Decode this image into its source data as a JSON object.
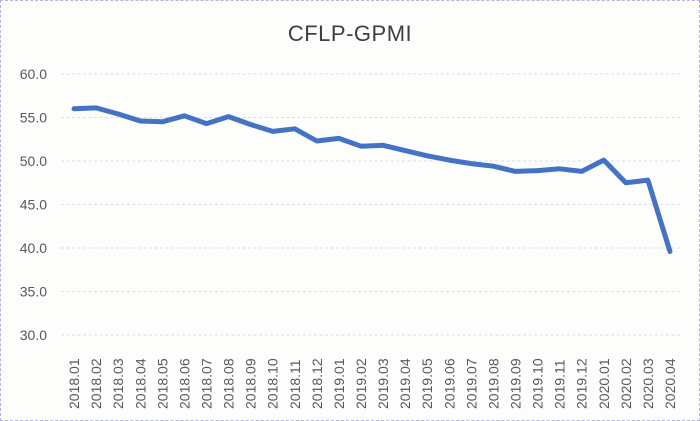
{
  "window": {
    "background": "#fdfdfc",
    "border_color": "#b3b3e0"
  },
  "chart_data": {
    "type": "line",
    "title": "CFLP-GPMI",
    "title_color": "#3f3f3f",
    "axis_label_color": "#595959",
    "gridline_color": "#cfe2e6",
    "grid": "horizontal-dashed",
    "legend": "none",
    "markers": "none",
    "ylim": [
      30,
      60
    ],
    "y_tick_step": 5,
    "y_tick_labels": [
      "60.0",
      "55.0",
      "50.0",
      "45.0",
      "40.0",
      "35.0",
      "30.0"
    ],
    "categories": [
      "2018.01",
      "2018.02",
      "2018.03",
      "2018.04",
      "2018.05",
      "2018.06",
      "2018.07",
      "2018.08",
      "2018.09",
      "2018.10",
      "2018.11",
      "2018.12",
      "2019.01",
      "2019.02",
      "2019.03",
      "2019.04",
      "2019.05",
      "2019.06",
      "2019.07",
      "2019.08",
      "2019.09",
      "2019.10",
      "2019.11",
      "2019.12",
      "2020.01",
      "2020.02",
      "2020.03",
      "2020.04"
    ],
    "series": [
      {
        "name": "CFLP-GPMI",
        "color": "#4472c4",
        "values": [
          56.0,
          56.1,
          55.4,
          54.6,
          54.5,
          55.2,
          54.3,
          55.1,
          54.2,
          53.4,
          53.7,
          52.3,
          52.6,
          51.7,
          51.8,
          51.2,
          50.6,
          50.1,
          49.7,
          49.4,
          48.8,
          48.9,
          49.1,
          48.8,
          50.1,
          47.5,
          47.8,
          39.6
        ]
      }
    ],
    "xlabel": "",
    "ylabel": ""
  }
}
